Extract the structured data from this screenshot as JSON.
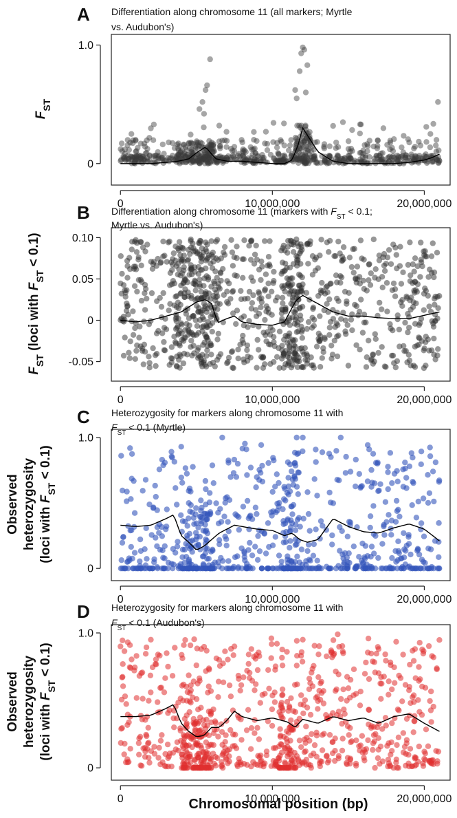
{
  "figure": {
    "xlabel": "Chromosomal position (bp)"
  },
  "chart_data": [
    {
      "type": "scatter",
      "panel": "A",
      "title": [
        "Differentiation along chromosome 11 (all markers; Myrtle",
        "vs. Audubon's)"
      ],
      "ylabel": "F_ST",
      "ylabel_parts": [
        {
          "text": "F",
          "italic": true
        },
        {
          "text": "ST",
          "sub": true
        }
      ],
      "xlim": [
        -600000,
        21700000
      ],
      "ylim": [
        -0.1,
        1.02
      ],
      "xticks": [
        0,
        10000000,
        20000000
      ],
      "xtick_labels": [
        "0",
        "10,000,000",
        "20,000,000"
      ],
      "yticks": [
        0,
        1.0
      ],
      "ytick_labels": [
        "0",
        "1.0"
      ],
      "point_color": "#3a3a3a",
      "point_opacity": 0.45,
      "dist": {
        "mode": "all",
        "low": 0,
        "high": 1,
        "nbase": 620
      },
      "points": [
        [
          12000000,
          0.98
        ],
        [
          12100000,
          0.96
        ],
        [
          11900000,
          0.93
        ],
        [
          12300000,
          0.83
        ],
        [
          11800000,
          0.78
        ],
        [
          12200000,
          0.6
        ],
        [
          5900000,
          0.88
        ],
        [
          5700000,
          0.66
        ],
        [
          5600000,
          0.62
        ],
        [
          5400000,
          0.52
        ],
        [
          20900000,
          0.52
        ],
        [
          11500000,
          0.62
        ],
        [
          11600000,
          0.55
        ],
        [
          5500000,
          0.42
        ],
        [
          5200000,
          0.46
        ],
        [
          2200000,
          0.33
        ],
        [
          1000000,
          0.2
        ],
        [
          6500000,
          0.32
        ],
        [
          20800000,
          0.2
        ],
        [
          20400000,
          0.25
        ]
      ],
      "hotspots": [
        [
          5000000,
          1300000,
          0.18,
          90
        ],
        [
          12000000,
          500000,
          0.35,
          60
        ]
      ],
      "trend": {
        "x": [
          0,
          1000000,
          2000000,
          3000000,
          3800000,
          4500000,
          5000000,
          5600000,
          6000000,
          6300000,
          7000000,
          8000000,
          9000000,
          10000000,
          10800000,
          11300000,
          11700000,
          12000000,
          12400000,
          13000000,
          13600000,
          14000000,
          15000000,
          16000000,
          17000000,
          18000000,
          19000000,
          20000000,
          20500000,
          21000000
        ],
        "y": [
          0.0,
          0.0,
          0.0,
          0.01,
          0.02,
          0.04,
          0.09,
          0.14,
          0.08,
          0.04,
          0.02,
          0.02,
          0.01,
          0.0,
          0.0,
          0.03,
          0.16,
          0.3,
          0.22,
          0.1,
          0.05,
          0.02,
          0.0,
          0.0,
          0.0,
          0.0,
          0.01,
          0.03,
          0.05,
          0.08
        ]
      },
      "seed": 11
    },
    {
      "type": "scatter",
      "panel": "B",
      "title": [
        "Differentiation along chromosome 11 (markers with F_ST < 0.1;",
        "Myrtle vs. Audubon's)"
      ],
      "title_parts_line1": [
        {
          "text": "Differentiation along chromosome 11 (markers with "
        },
        {
          "text": "F",
          "italic": true
        },
        {
          "text": "ST",
          "sub": true
        },
        {
          "text": " < 0.1;"
        }
      ],
      "ylabel": "F_ST (loci with F_ST < 0.1)",
      "ylabel_parts": [
        {
          "text": "F",
          "italic": true
        },
        {
          "text": "ST",
          "sub": true
        },
        {
          "text": " (loci with "
        },
        {
          "text": "F",
          "italic": true
        },
        {
          "text": "ST",
          "sub": true
        },
        {
          "text": " < 0.1)"
        }
      ],
      "xlim": [
        -600000,
        21700000
      ],
      "ylim": [
        -0.062,
        0.102
      ],
      "xticks": [
        0,
        10000000,
        20000000
      ],
      "xtick_labels": [
        "0",
        "10,000,000",
        "20,000,000"
      ],
      "yticks": [
        -0.05,
        0,
        0.05,
        0.1
      ],
      "ytick_labels": [
        "-0.05",
        "0",
        "0.05",
        "0.10"
      ],
      "point_color": "#303030",
      "point_opacity": 0.5,
      "dist": {
        "mode": "uniform",
        "low": -0.058,
        "high": 0.098,
        "nbase": 760
      },
      "points": [],
      "hotspots": [
        [
          5000000,
          1400000,
          0.02,
          150
        ],
        [
          11300000,
          700000,
          0.015,
          120
        ]
      ],
      "trend": {
        "x": [
          0,
          1000000,
          2000000,
          3000000,
          4000000,
          5000000,
          5600000,
          6000000,
          6400000,
          7000000,
          7500000,
          8000000,
          9000000,
          10000000,
          10800000,
          11200000,
          11600000,
          12000000,
          13000000,
          14000000,
          15000000,
          16000000,
          17000000,
          18000000,
          19000000,
          20000000,
          21000000
        ],
        "y": [
          0.0,
          -0.002,
          0.0,
          0.005,
          0.01,
          0.022,
          0.025,
          0.02,
          -0.003,
          0.002,
          0.005,
          -0.002,
          -0.005,
          -0.006,
          -0.002,
          0.012,
          0.025,
          0.03,
          0.02,
          0.01,
          0.005,
          0.005,
          0.003,
          0.002,
          0.002,
          0.006,
          0.01
        ]
      },
      "seed": 22
    },
    {
      "type": "scatter",
      "panel": "C",
      "title": [
        "Heterozygosity for markers along chromosome 11 with",
        "F_ST < 0.1 (Myrtle)"
      ],
      "title_parts_line2": [
        {
          "text": "F",
          "italic": true
        },
        {
          "text": "ST",
          "sub": true
        },
        {
          "text": " < 0.1 (Myrtle)"
        }
      ],
      "ylabel_lines": [
        "Observed",
        "heterozygosity"
      ],
      "ylabel_parts": [
        {
          "text": "(loci with "
        },
        {
          "text": "F",
          "italic": true
        },
        {
          "text": "ST",
          "sub": true
        },
        {
          "text": " < 0.1)"
        }
      ],
      "xlim": [
        -600000,
        21700000
      ],
      "ylim": [
        -0.02,
        1.0
      ],
      "xticks": [
        0,
        10000000,
        20000000
      ],
      "xtick_labels": [
        "0",
        "10,000,000",
        "20,000,000"
      ],
      "yticks": [
        0,
        1.0
      ],
      "ytick_labels": [
        "0",
        "1.0"
      ],
      "point_color": "#3355bb",
      "point_opacity": 0.6,
      "dist": {
        "mode": "het",
        "low": 0,
        "high": 1,
        "nbase": 620,
        "zero_frac": 0.25
      },
      "points": [
        [
          12000000,
          1.0
        ],
        [
          11600000,
          1.0
        ],
        [
          14500000,
          1.0
        ],
        [
          6700000,
          1.0
        ],
        [
          4000000,
          0.93
        ]
      ],
      "hotspots": [
        [
          5200000,
          900000,
          0.2,
          80
        ],
        [
          11200000,
          500000,
          0.3,
          60
        ]
      ],
      "trend": {
        "x": [
          0,
          1000000,
          2000000,
          3000000,
          3500000,
          4000000,
          4500000,
          5000000,
          5500000,
          6000000,
          6500000,
          7000000,
          7500000,
          8000000,
          9000000,
          10000000,
          10800000,
          11300000,
          11800000,
          12300000,
          13000000,
          13500000,
          14000000,
          14500000,
          15000000,
          16000000,
          17000000,
          18000000,
          19000000,
          20000000,
          21000000
        ],
        "y": [
          0.33,
          0.32,
          0.33,
          0.38,
          0.41,
          0.25,
          0.2,
          0.14,
          0.17,
          0.22,
          0.27,
          0.3,
          0.33,
          0.32,
          0.3,
          0.29,
          0.25,
          0.27,
          0.22,
          0.2,
          0.22,
          0.3,
          0.38,
          0.35,
          0.32,
          0.28,
          0.27,
          0.31,
          0.34,
          0.3,
          0.21
        ]
      },
      "seed": 33
    },
    {
      "type": "scatter",
      "panel": "D",
      "title": [
        "Heterozygosity for markers along chromosome 11 with",
        "F_ST < 0.1 (Audubon's)"
      ],
      "title_parts_line2": [
        {
          "text": "F",
          "italic": true
        },
        {
          "text": "ST",
          "sub": true
        },
        {
          "text": " < 0.1 (Audubon's)"
        }
      ],
      "ylabel_lines": [
        "Observed",
        "heterozygosity"
      ],
      "ylabel_parts": [
        {
          "text": "(loci with "
        },
        {
          "text": "F",
          "italic": true
        },
        {
          "text": "ST",
          "sub": true
        },
        {
          "text": " < 0.1)"
        }
      ],
      "xlim": [
        -600000,
        21700000
      ],
      "ylim": [
        -0.02,
        1.0
      ],
      "xticks": [
        0,
        10000000,
        20000000
      ],
      "xtick_labels": [
        "0",
        "10,000,000",
        "20,000,000"
      ],
      "yticks": [
        0,
        1.0
      ],
      "ytick_labels": [
        "0",
        "1.0"
      ],
      "point_color": "#e03030",
      "point_opacity": 0.55,
      "dist": {
        "mode": "het",
        "low": 0,
        "high": 1,
        "nbase": 680,
        "zero_frac": 0.02
      },
      "points": [
        [
          14300000,
          0.99
        ],
        [
          2000000,
          0.95
        ],
        [
          12000000,
          0.95
        ],
        [
          10300000,
          0.92
        ],
        [
          0,
          0.9
        ],
        [
          7500000,
          0.9
        ]
      ],
      "hotspots": [
        [
          5000000,
          1000000,
          0.15,
          110
        ],
        [
          11000000,
          600000,
          0.2,
          60
        ]
      ],
      "trend": {
        "x": [
          0,
          1000000,
          2000000,
          3000000,
          3500000,
          4000000,
          4500000,
          5000000,
          5500000,
          6000000,
          6500000,
          7000000,
          7500000,
          8000000,
          9000000,
          10000000,
          11000000,
          11500000,
          12000000,
          13000000,
          14000000,
          15000000,
          16000000,
          17000000,
          18000000,
          19000000,
          20000000,
          21000000
        ],
        "y": [
          0.38,
          0.38,
          0.39,
          0.44,
          0.47,
          0.33,
          0.27,
          0.23,
          0.24,
          0.3,
          0.3,
          0.35,
          0.42,
          0.38,
          0.35,
          0.37,
          0.34,
          0.3,
          0.36,
          0.33,
          0.38,
          0.35,
          0.37,
          0.33,
          0.38,
          0.4,
          0.33,
          0.27
        ]
      },
      "seed": 44
    }
  ]
}
